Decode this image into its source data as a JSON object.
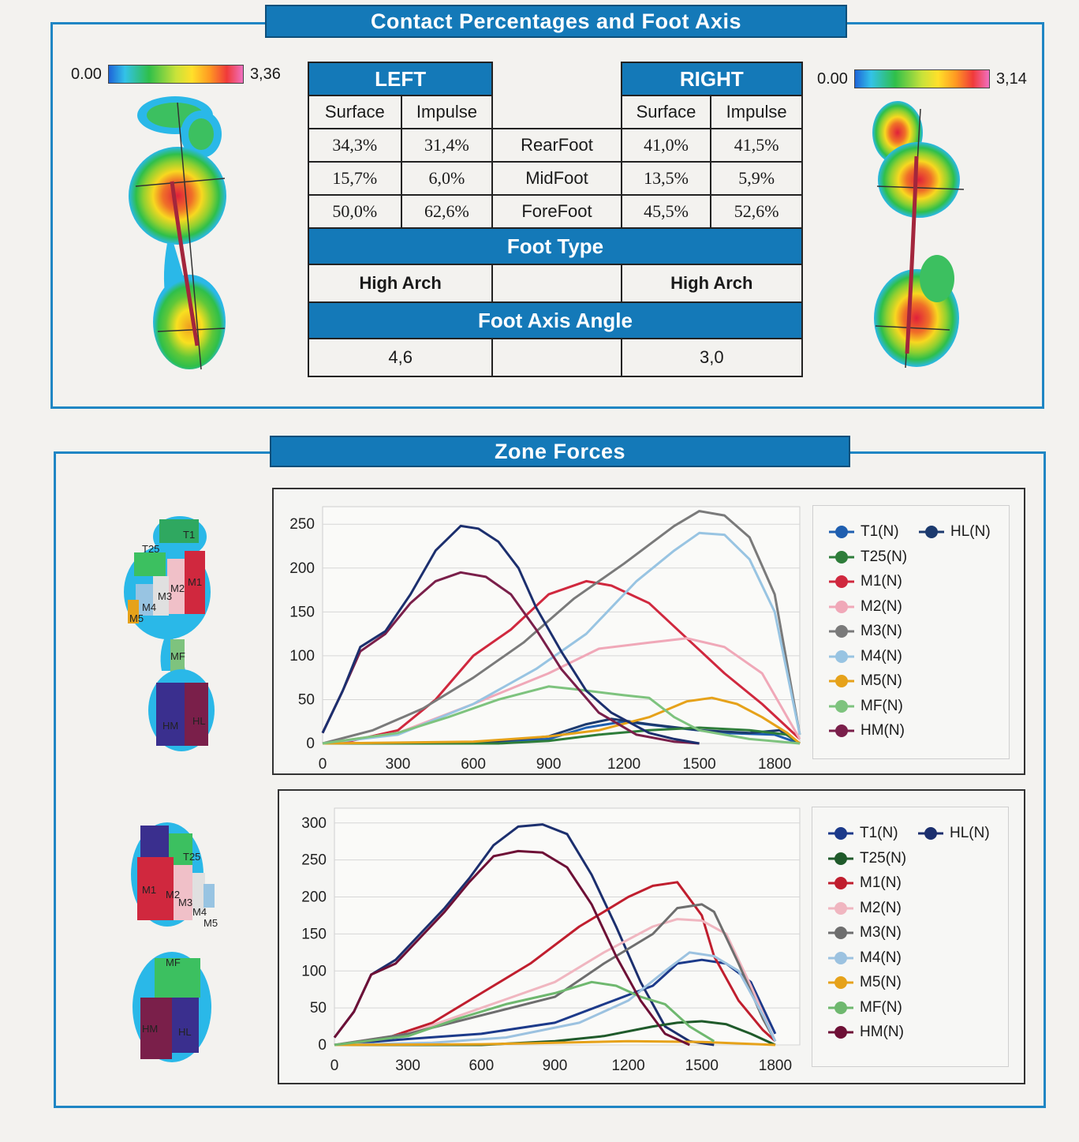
{
  "section1": {
    "title": "Contact Percentages and Foot Axis"
  },
  "section2": {
    "title": "Zone Forces"
  },
  "left_scale": {
    "min": "0.00",
    "max": "3,36"
  },
  "right_scale": {
    "min": "0.00",
    "max": "3,14"
  },
  "table": {
    "left_header": "LEFT",
    "right_header": "RIGHT",
    "col_surface": "Surface",
    "col_impulse": "Impulse",
    "rows": [
      {
        "label": "RearFoot",
        "ls": "34,3%",
        "li": "31,4%",
        "rs": "41,0%",
        "ri": "41,5%"
      },
      {
        "label": "MidFoot",
        "ls": "15,7%",
        "li": "6,0%",
        "rs": "13,5%",
        "ri": "5,9%"
      },
      {
        "label": "ForeFoot",
        "ls": "50,0%",
        "li": "62,6%",
        "rs": "45,5%",
        "ri": "52,6%"
      }
    ],
    "foot_type_label": "Foot Type",
    "foot_type_left": "High Arch",
    "foot_type_right": "High Arch",
    "axis_angle_label": "Foot Axis Angle",
    "axis_angle_left": "4,6",
    "axis_angle_right": "3,0"
  },
  "zone_labels_top": [
    "T25",
    "T1",
    "M1",
    "M2",
    "M3",
    "M4",
    "M5",
    "MF",
    "HL",
    "HM"
  ],
  "zone_labels_bottom": [
    "T25",
    "M1",
    "M2",
    "M3",
    "M4",
    "M5",
    "MF",
    "HM",
    "HL"
  ],
  "colors": {
    "accent": "#1479b8",
    "border": "#1f86c4"
  },
  "chart_data": [
    {
      "type": "line",
      "xticks": [
        0,
        300,
        600,
        900,
        1200,
        1500,
        1800
      ],
      "yticks": [
        0,
        50,
        100,
        150,
        200,
        250
      ],
      "xlim": [
        0,
        1900
      ],
      "ylim": [
        0,
        270
      ],
      "grid": true,
      "legend": "right",
      "series": [
        {
          "name": "T1(N)",
          "color": "#1f5fb0",
          "x": [
            0,
            600,
            900,
            1050,
            1200,
            1400,
            1600,
            1800,
            1900
          ],
          "y": [
            0,
            0,
            5,
            18,
            25,
            18,
            12,
            10,
            0
          ]
        },
        {
          "name": "HL(N)",
          "color": "#1c3a6e",
          "x": [
            0,
            600,
            900,
            1050,
            1150,
            1300,
            1500,
            1700,
            1820,
            1900
          ],
          "y": [
            0,
            0,
            8,
            22,
            28,
            22,
            15,
            12,
            15,
            0
          ]
        },
        {
          "name": "T25(N)",
          "color": "#2e7d3a",
          "x": [
            0,
            700,
            900,
            1100,
            1300,
            1500,
            1700,
            1850,
            1900
          ],
          "y": [
            0,
            0,
            3,
            10,
            15,
            18,
            15,
            10,
            0
          ]
        },
        {
          "name": "M1(N)",
          "color": "#d0283e",
          "x": [
            0,
            100,
            300,
            450,
            600,
            750,
            900,
            1050,
            1150,
            1300,
            1450,
            1600,
            1750,
            1900
          ],
          "y": [
            0,
            2,
            15,
            50,
            100,
            130,
            170,
            185,
            180,
            160,
            120,
            80,
            45,
            5
          ]
        },
        {
          "name": "M2(N)",
          "color": "#f0a8b8",
          "x": [
            0,
            300,
            600,
            900,
            1100,
            1300,
            1450,
            1600,
            1750,
            1900
          ],
          "y": [
            0,
            12,
            45,
            80,
            108,
            115,
            120,
            110,
            80,
            5
          ]
        },
        {
          "name": "M3(N)",
          "color": "#7a7a7a",
          "x": [
            0,
            200,
            400,
            600,
            800,
            1000,
            1200,
            1400,
            1500,
            1600,
            1700,
            1800,
            1900
          ],
          "y": [
            0,
            15,
            40,
            75,
            115,
            165,
            205,
            248,
            265,
            260,
            235,
            170,
            10
          ]
        },
        {
          "name": "M4(N)",
          "color": "#98c4e2",
          "x": [
            0,
            300,
            600,
            850,
            1050,
            1250,
            1400,
            1500,
            1600,
            1700,
            1800,
            1900
          ],
          "y": [
            0,
            10,
            45,
            85,
            125,
            185,
            220,
            240,
            238,
            210,
            150,
            10
          ]
        },
        {
          "name": "M5(N)",
          "color": "#e6a21a",
          "x": [
            0,
            600,
            900,
            1100,
            1300,
            1450,
            1550,
            1650,
            1750,
            1850,
            1900
          ],
          "y": [
            0,
            2,
            8,
            15,
            30,
            48,
            52,
            45,
            30,
            12,
            0
          ]
        },
        {
          "name": "MF(N)",
          "color": "#7ec37e",
          "x": [
            0,
            300,
            500,
            700,
            900,
            1000,
            1200,
            1300,
            1400,
            1500,
            1600,
            1700,
            1900
          ],
          "y": [
            0,
            12,
            30,
            50,
            65,
            62,
            55,
            52,
            30,
            15,
            10,
            5,
            0
          ]
        },
        {
          "name": "HM(N)",
          "color": "#7a1f4a",
          "x": [
            0,
            80,
            150,
            250,
            350,
            450,
            550,
            650,
            750,
            850,
            950,
            1100,
            1250,
            1400,
            1500
          ],
          "y": [
            12,
            60,
            105,
            125,
            160,
            185,
            195,
            190,
            170,
            130,
            85,
            35,
            10,
            2,
            0
          ]
        },
        {
          "name": "",
          "color": "#1c2f6e",
          "x": [
            0,
            80,
            150,
            250,
            350,
            450,
            550,
            620,
            700,
            780,
            850,
            950,
            1050,
            1150,
            1300,
            1400,
            1500
          ],
          "y": [
            12,
            60,
            110,
            128,
            170,
            220,
            248,
            245,
            230,
            200,
            155,
            105,
            60,
            35,
            12,
            5,
            0
          ]
        }
      ]
    },
    {
      "type": "line",
      "xticks": [
        0,
        300,
        600,
        900,
        1200,
        1500,
        1800
      ],
      "yticks": [
        0,
        50,
        100,
        150,
        200,
        250,
        300
      ],
      "xlim": [
        0,
        1900
      ],
      "ylim": [
        0,
        320
      ],
      "grid": true,
      "legend": "right",
      "series": [
        {
          "name": "T1(N)",
          "color": "#1c3a8a",
          "x": [
            0,
            300,
            600,
            900,
            1100,
            1300,
            1400,
            1500,
            1600,
            1700,
            1800
          ],
          "y": [
            0,
            8,
            15,
            30,
            55,
            80,
            110,
            115,
            110,
            85,
            15
          ]
        },
        {
          "name": "HL(N)",
          "color": "#1c2f6e",
          "x": [
            0,
            80,
            150,
            250,
            350,
            450,
            550,
            650,
            750,
            850,
            950,
            1050,
            1150,
            1250,
            1350,
            1450,
            1550
          ],
          "y": [
            10,
            45,
            95,
            115,
            150,
            185,
            225,
            270,
            295,
            298,
            285,
            230,
            160,
            85,
            25,
            5,
            0
          ]
        },
        {
          "name": "T25(N)",
          "color": "#1f5a2a",
          "x": [
            0,
            600,
            900,
            1100,
            1300,
            1400,
            1500,
            1600,
            1700,
            1800
          ],
          "y": [
            0,
            0,
            5,
            12,
            25,
            30,
            32,
            28,
            15,
            0
          ]
        },
        {
          "name": "M1(N)",
          "color": "#c01e2e",
          "x": [
            0,
            200,
            400,
            600,
            800,
            1000,
            1100,
            1200,
            1300,
            1400,
            1500,
            1550,
            1650,
            1750,
            1800
          ],
          "y": [
            0,
            8,
            30,
            70,
            110,
            160,
            180,
            200,
            215,
            220,
            175,
            120,
            60,
            20,
            5
          ]
        },
        {
          "name": "M2(N)",
          "color": "#f0b6c0",
          "x": [
            0,
            300,
            600,
            900,
            1100,
            1300,
            1400,
            1500,
            1600,
            1700,
            1800
          ],
          "y": [
            0,
            15,
            50,
            85,
            125,
            160,
            170,
            168,
            150,
            80,
            5
          ]
        },
        {
          "name": "M3(N)",
          "color": "#6e6e6e",
          "x": [
            0,
            300,
            600,
            900,
            1100,
            1300,
            1400,
            1500,
            1550,
            1650,
            1750,
            1800
          ],
          "y": [
            0,
            15,
            40,
            65,
            110,
            150,
            185,
            190,
            180,
            110,
            35,
            5
          ]
        },
        {
          "name": "M4(N)",
          "color": "#9cc2e0",
          "x": [
            0,
            400,
            700,
            1000,
            1200,
            1350,
            1450,
            1550,
            1650,
            1750,
            1800
          ],
          "y": [
            0,
            3,
            10,
            30,
            60,
            100,
            125,
            120,
            100,
            40,
            5
          ]
        },
        {
          "name": "M5(N)",
          "color": "#e6a21a",
          "x": [
            0,
            600,
            900,
            1200,
            1500,
            1800
          ],
          "y": [
            0,
            1,
            3,
            5,
            4,
            0
          ]
        },
        {
          "name": "MF(N)",
          "color": "#6fb86f",
          "x": [
            0,
            300,
            500,
            700,
            900,
            1050,
            1150,
            1250,
            1350,
            1450,
            1550
          ],
          "y": [
            0,
            12,
            35,
            55,
            70,
            85,
            80,
            65,
            55,
            25,
            5
          ]
        },
        {
          "name": "HM(N)",
          "color": "#6e1036",
          "x": [
            0,
            80,
            150,
            250,
            350,
            450,
            550,
            650,
            750,
            850,
            950,
            1050,
            1150,
            1250,
            1350,
            1450
          ],
          "y": [
            10,
            45,
            95,
            110,
            145,
            180,
            220,
            255,
            262,
            260,
            240,
            190,
            120,
            60,
            15,
            0
          ]
        }
      ]
    }
  ]
}
